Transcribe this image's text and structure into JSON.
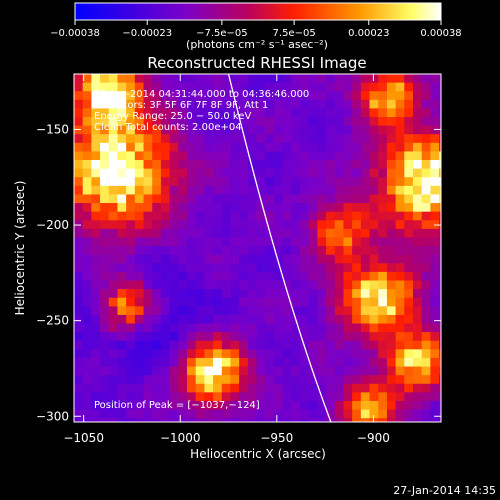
{
  "chart_data": {
    "type": "heatmap",
    "title": "Reconstructed RHESSI Image",
    "xlabel": "Heliocentric X (arcsec)",
    "ylabel": "Heliocentric Y (arcsec)",
    "xlim": [
      -1055,
      -865
    ],
    "ylim": [
      -303,
      -121
    ],
    "x_ticks": [
      -1050,
      -1000,
      -950,
      -900
    ],
    "y_ticks": [
      -150,
      -200,
      -250,
      -300
    ],
    "x_tick_labels": [
      "−1050",
      "−1000",
      "−950",
      "−900"
    ],
    "y_tick_labels": [
      "−150",
      "−200",
      "−250",
      "−300"
    ],
    "colorbar": {
      "ticks": [
        -0.00038,
        -0.00023,
        -7.5e-05,
        7.5e-05,
        0.00023,
        0.00038
      ],
      "tick_labels": [
        "−0.00038",
        "−0.00023",
        "−7.5e−05",
        "7.5e−05",
        "0.00023",
        "0.00038"
      ],
      "units_label": "(photons cm⁻² s⁻¹ asec⁻²)",
      "colors": [
        "#0000ff",
        "#7a00c8",
        "#b80060",
        "#ff2000",
        "#ff9a00",
        "#ffff66",
        "#ffffff"
      ]
    },
    "annotations": [
      "27-Jan-2014 04:31:44.000 to 04:36:46.000",
      "Detectors: 3F 5F 6F 7F 8F 9F, Att 1",
      "Energy Range: 25.0 − 50.0 keV",
      "Clean    Total counts: 2.00e+04"
    ],
    "peak_label": "Position of Peak = [−1037,−124]",
    "peak_position": [
      -1037,
      -124
    ],
    "limb_curve": [
      [
        -975,
        -121
      ],
      [
        -956,
        -200
      ],
      [
        -938,
        -260
      ],
      [
        -922,
        -303
      ]
    ],
    "bright_regions": [
      {
        "x": -1035,
        "y": -170,
        "r": 28,
        "v": 1.0
      },
      {
        "x": -1040,
        "y": -128,
        "r": 18,
        "v": 0.9
      },
      {
        "x": -1030,
        "y": -240,
        "r": 14,
        "v": 0.8
      },
      {
        "x": -875,
        "y": -175,
        "r": 25,
        "v": 1.0
      },
      {
        "x": -895,
        "y": -130,
        "r": 14,
        "v": 0.8
      },
      {
        "x": -900,
        "y": -235,
        "r": 20,
        "v": 0.85
      },
      {
        "x": -880,
        "y": -270,
        "r": 16,
        "v": 0.8
      },
      {
        "x": -985,
        "y": -275,
        "r": 16,
        "v": 0.95
      },
      {
        "x": -905,
        "y": -295,
        "r": 14,
        "v": 0.7
      },
      {
        "x": -920,
        "y": -200,
        "r": 14,
        "v": 0.6
      }
    ]
  },
  "timestamp": "27-Jan-2014 14:35"
}
